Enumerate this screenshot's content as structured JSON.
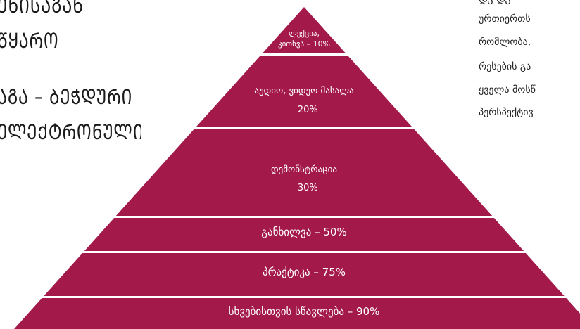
{
  "colors": {
    "tier_fill": "#a3194a",
    "tier_text": "#ffffff",
    "background": "#ffffff",
    "body_text": "#1a1a1a"
  },
  "left_text": {
    "lines": [
      "ᲔᲜᲘᲡᲐᲒᲐᲜ",
      "ᲬᲧᲐᲠᲝ",
      "ᲐᲒᲐ – ᲑᲔᲭᲓᲣᲠᲘ",
      "ᲔᲚᲔᲥᲢᲠᲝᲜᲣᲚᲘ."
    ]
  },
  "right_text": {
    "lines": [
      "ᲓᲐ ᲓᲐ",
      "ურთიერთს",
      "რომლობა,",
      "რესების გა",
      "ყველა მოსწ",
      "პერსპექტივ"
    ]
  },
  "pyramid": {
    "tiers": [
      {
        "lines": [
          "ლექცია,",
          "კითხვა – 10%"
        ]
      },
      {
        "lines": [
          "აუდიო, ვიდეო მასალა",
          "– 20%"
        ]
      },
      {
        "lines": [
          "დემონსტრაცია",
          "– 30%"
        ]
      },
      {
        "lines": [
          "განხილვა – 50%"
        ]
      },
      {
        "lines": [
          "პრაქტიკა – 75%"
        ]
      },
      {
        "lines": [
          "სხვებისთვის სწავლება – 90%"
        ]
      }
    ]
  }
}
